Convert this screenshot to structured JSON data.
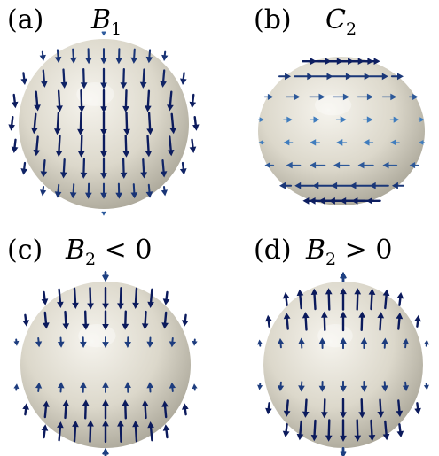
{
  "panels": [
    {
      "id": "a",
      "label": "(a)",
      "title_main": "B",
      "title_sub": "1",
      "title_rel": "",
      "field": "meridional-down"
    },
    {
      "id": "b",
      "label": "(b)",
      "title_main": "C",
      "title_sub": "2",
      "title_rel": "",
      "field": "azimuthal-opposite-hemispheres"
    },
    {
      "id": "c",
      "label": "(c)",
      "title_main": "B",
      "title_sub": "2",
      "title_rel": " < 0",
      "field": "meridional-toward-equator"
    },
    {
      "id": "d",
      "label": "(d)",
      "title_main": "B",
      "title_sub": "2",
      "title_rel": " > 0",
      "field": "meridional-away-from-equator"
    }
  ],
  "colors": {
    "sphere_light": "#f4f2ec",
    "sphere_mid": "#d6d2c4",
    "sphere_dark": "#9e9a8c",
    "arrow_strong": "#0b1a5c",
    "arrow_weak": "#4a8fd0"
  }
}
